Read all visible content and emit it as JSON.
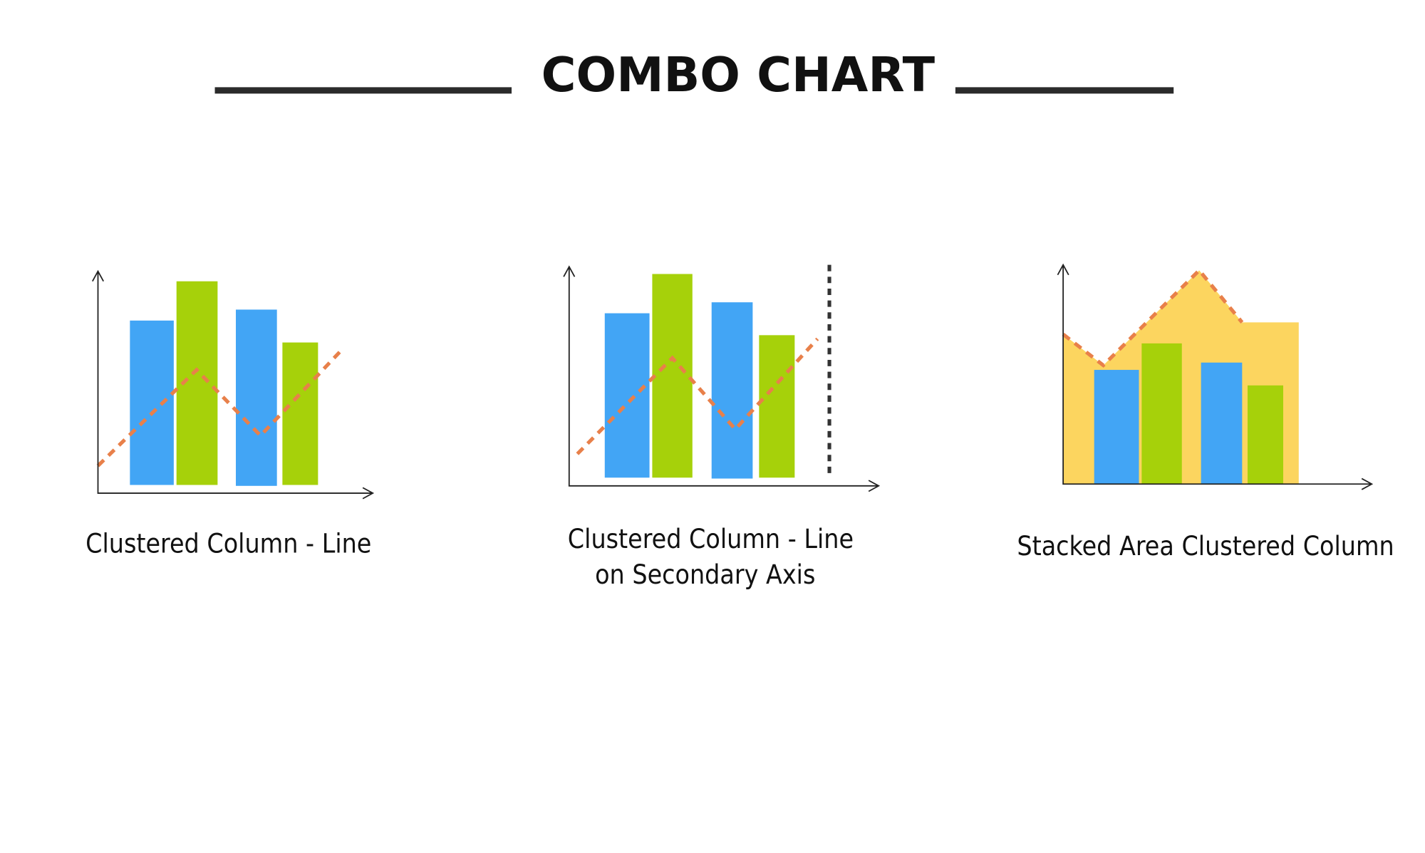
{
  "header": {
    "title": "COMBO CHART"
  },
  "items": [
    {
      "caption": [
        "Clustered Column - Line"
      ]
    },
    {
      "caption": [
        "Clustered Column - Line",
        "on Secondary Axis"
      ]
    },
    {
      "caption": [
        "Stacked Area Clustered Column"
      ]
    }
  ]
}
